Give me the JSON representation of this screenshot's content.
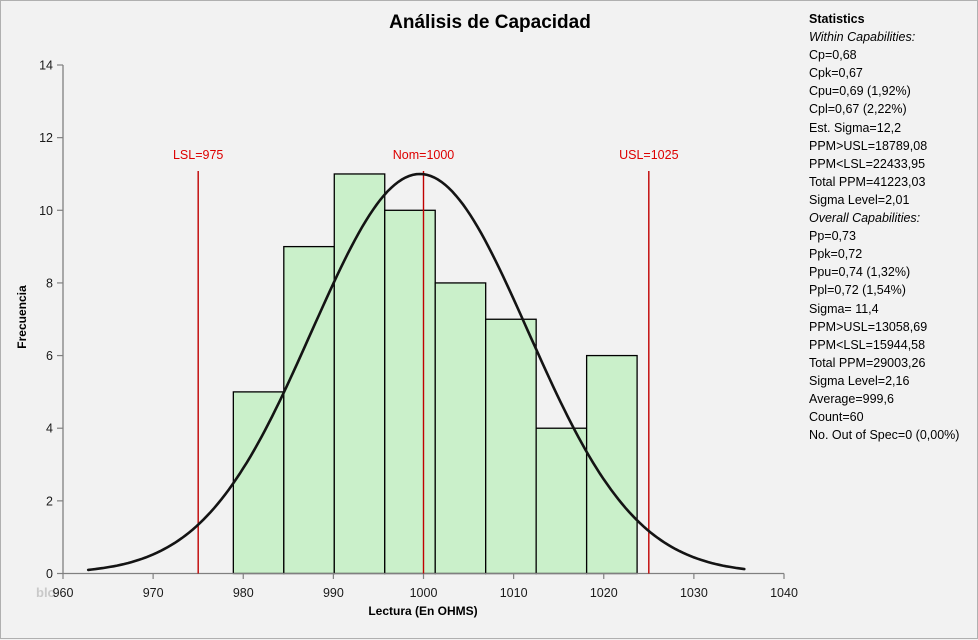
{
  "watermark": "blo",
  "stats_panel": {
    "lines": [
      {
        "text": "Statistics",
        "style": "bold"
      },
      {
        "text": "Within Capabilities:",
        "style": "italic"
      },
      {
        "text": "Cp=0,68",
        "style": "normal"
      },
      {
        "text": "Cpk=0,67",
        "style": "normal"
      },
      {
        "text": "Cpu=0,69 (1,92%)",
        "style": "normal"
      },
      {
        "text": "Cpl=0,67 (2,22%)",
        "style": "normal"
      },
      {
        "text": "Est. Sigma=12,2",
        "style": "normal"
      },
      {
        "text": "PPM>USL=18789,08",
        "style": "normal"
      },
      {
        "text": "PPM<LSL=22433,95",
        "style": "normal"
      },
      {
        "text": "Total PPM=41223,03",
        "style": "normal"
      },
      {
        "text": "Sigma Level=2,01",
        "style": "normal"
      },
      {
        "text": "Overall Capabilities:",
        "style": "italic"
      },
      {
        "text": "Pp=0,73",
        "style": "normal"
      },
      {
        "text": "Ppk=0,72",
        "style": "normal"
      },
      {
        "text": "Ppu=0,74 (1,32%)",
        "style": "normal"
      },
      {
        "text": "Ppl=0,72 (1,54%)",
        "style": "normal"
      },
      {
        "text": "Sigma= 11,4",
        "style": "normal"
      },
      {
        "text": "PPM>USL=13058,69",
        "style": "normal"
      },
      {
        "text": "PPM<LSL=15944,58",
        "style": "normal"
      },
      {
        "text": "Total PPM=29003,26",
        "style": "normal"
      },
      {
        "text": "Sigma Level=2,16",
        "style": "normal"
      },
      {
        "text": "Average=999,6",
        "style": "normal"
      },
      {
        "text": "Count=60",
        "style": "normal"
      },
      {
        "text": "No. Out of Spec=0 (0,00%)",
        "style": "normal"
      }
    ]
  },
  "chart_data": {
    "type": "bar",
    "subtype": "histogram-with-normal-curve",
    "title": "Análisis de Capacidad",
    "xlabel": "Lectura (En OHMS)",
    "ylabel": "Frecuencia",
    "xlim": [
      960,
      1040
    ],
    "ylim": [
      0,
      14
    ],
    "x_ticks": [
      960,
      970,
      980,
      990,
      1000,
      1010,
      1020,
      1030,
      1040
    ],
    "y_ticks": [
      0,
      2,
      4,
      6,
      8,
      10,
      12,
      14
    ],
    "grid": false,
    "bins": {
      "start": 978.9,
      "width": 5.6,
      "counts": [
        5,
        9,
        11,
        10,
        8,
        7,
        4,
        6
      ],
      "total_count": 60
    },
    "normal_curve": {
      "mean": 999.6,
      "sigma": 12.0,
      "peak": 11.0,
      "x_start": 962.8,
      "x_end": 1035.7
    },
    "spec_lines": [
      {
        "label": "LSL=975",
        "x": 975
      },
      {
        "label": "Nom=1000",
        "x": 1000
      },
      {
        "label": "USL=1025",
        "x": 1025
      }
    ],
    "spec_line_top_frequency": 11.08,
    "colors": {
      "background": "#f2f2f2",
      "bar_fill": "#caf0ca",
      "bar_stroke": "#000000",
      "curve": "#141414",
      "spec_line": "#c00000",
      "spec_label": "#dd0000",
      "axis": "#808080",
      "tick_label": "#1a1a1a"
    }
  }
}
